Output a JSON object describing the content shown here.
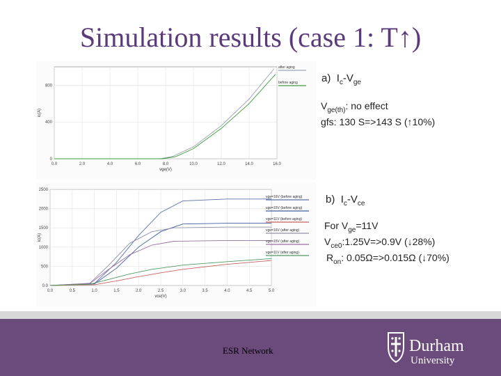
{
  "slide": {
    "title": "Simulation results (case 1: T↑)",
    "footer": "ESR Network",
    "logo": {
      "name": "Durham",
      "sub": "University"
    }
  },
  "panel_a": {
    "label_prefix": "a)",
    "label_main": "I",
    "label_sub": "c",
    "label_mid": "-V",
    "label_sub2": "ge",
    "note1_main": "V",
    "note1_sub": "ge(th)",
    "note1_rest": ": no effect",
    "note2": "gfs: 130 S=>143 S (↑10%)"
  },
  "panel_b": {
    "label_prefix": "b)",
    "label_main": "I",
    "label_sub": "c",
    "label_mid": "-V",
    "label_sub2": "ce",
    "note1_pre": "For V",
    "note1_sub": "ge",
    "note1_rest": "=11V",
    "note2_pre": "V",
    "note2_sub": "ce0",
    "note2_rest": ":1.25V=>0.9V (↓28%)",
    "note3_pre": "R",
    "note3_sub": "on",
    "note3_rest": ": 0.05Ω=>0.015Ω (↓70%)"
  },
  "colors": {
    "title": "#5a3a7a",
    "footer": "#6b4a7c",
    "green": "#3c9a3c"
  },
  "chart_data": [
    {
      "type": "line",
      "title": "",
      "xlabel": "vge(V)",
      "ylabel": "ic(A)",
      "xlim": [
        0,
        16
      ],
      "ylim": [
        0,
        1000
      ],
      "x_ticks": [
        "0.0",
        "2.0",
        "4.0",
        "6.0",
        "8.0",
        "10.0",
        "12.0",
        "14.0",
        "16.0"
      ],
      "y_ticks": [
        "0",
        "400",
        "800"
      ],
      "legend": [
        "after aging",
        "before aging"
      ],
      "series": [
        {
          "name": "after aging",
          "x": [
            0,
            7.6,
            8.5,
            10,
            12,
            14,
            15.8
          ],
          "y": [
            0,
            0,
            25,
            130,
            360,
            650,
            980
          ]
        },
        {
          "name": "before aging",
          "x": [
            0,
            7.8,
            8.7,
            10,
            12,
            14,
            15.9
          ],
          "y": [
            0,
            0,
            22,
            110,
            330,
            600,
            920
          ]
        }
      ]
    },
    {
      "type": "line",
      "title": "",
      "xlabel": "vce(V)",
      "ylabel": "ic(A)",
      "xlim": [
        0,
        5
      ],
      "ylim": [
        0,
        2500
      ],
      "x_ticks": [
        "0.0",
        "0.5",
        "1.0",
        "1.5",
        "2.0",
        "2.5",
        "3.0",
        "3.5",
        "4.0",
        "4.5",
        "5.0"
      ],
      "y_ticks": [
        "0.0",
        "500",
        "1000",
        "1500",
        "2000",
        "2500"
      ],
      "legend": [
        "vge=16V (before aging)",
        "vge=15V (before aging)",
        "vge=11V (before aging)",
        "vge=16V (after aging)",
        "vge=15V (after aging)",
        "vge=11V (after aging)"
      ],
      "series": [
        {
          "name": "vge=16V (before aging)",
          "x": [
            0,
            1,
            1.5,
            2,
            2.5,
            3.0,
            4,
            5
          ],
          "y": [
            0,
            50,
            600,
            1300,
            1900,
            2200,
            2250,
            2250
          ]
        },
        {
          "name": "vge=15V (before aging)",
          "x": [
            0,
            1,
            1.5,
            2,
            2.5,
            3.0,
            4,
            5
          ],
          "y": [
            0,
            40,
            450,
            1000,
            1400,
            1600,
            1620,
            1620
          ]
        },
        {
          "name": "vge=11V (before aging)",
          "x": [
            0,
            1,
            1.5,
            2,
            2.5,
            3.0,
            4,
            5
          ],
          "y": [
            0,
            20,
            120,
            230,
            330,
            420,
            550,
            650
          ]
        },
        {
          "name": "vge=16V (after aging)",
          "x": [
            0,
            0.9,
            1.3,
            1.8,
            2.3,
            2.8,
            4,
            5
          ],
          "y": [
            0,
            60,
            500,
            1100,
            1400,
            1500,
            1520,
            1520
          ]
        },
        {
          "name": "vge=15V (after aging)",
          "x": [
            0,
            0.9,
            1.3,
            1.8,
            2.3,
            2.8,
            4,
            5
          ],
          "y": [
            0,
            50,
            400,
            800,
            1050,
            1150,
            1170,
            1170
          ]
        },
        {
          "name": "vge=11V (after aging)",
          "x": [
            0,
            0.9,
            1.3,
            1.8,
            2.3,
            3.0,
            4,
            5
          ],
          "y": [
            0,
            30,
            150,
            300,
            420,
            530,
            620,
            700
          ]
        }
      ]
    }
  ]
}
